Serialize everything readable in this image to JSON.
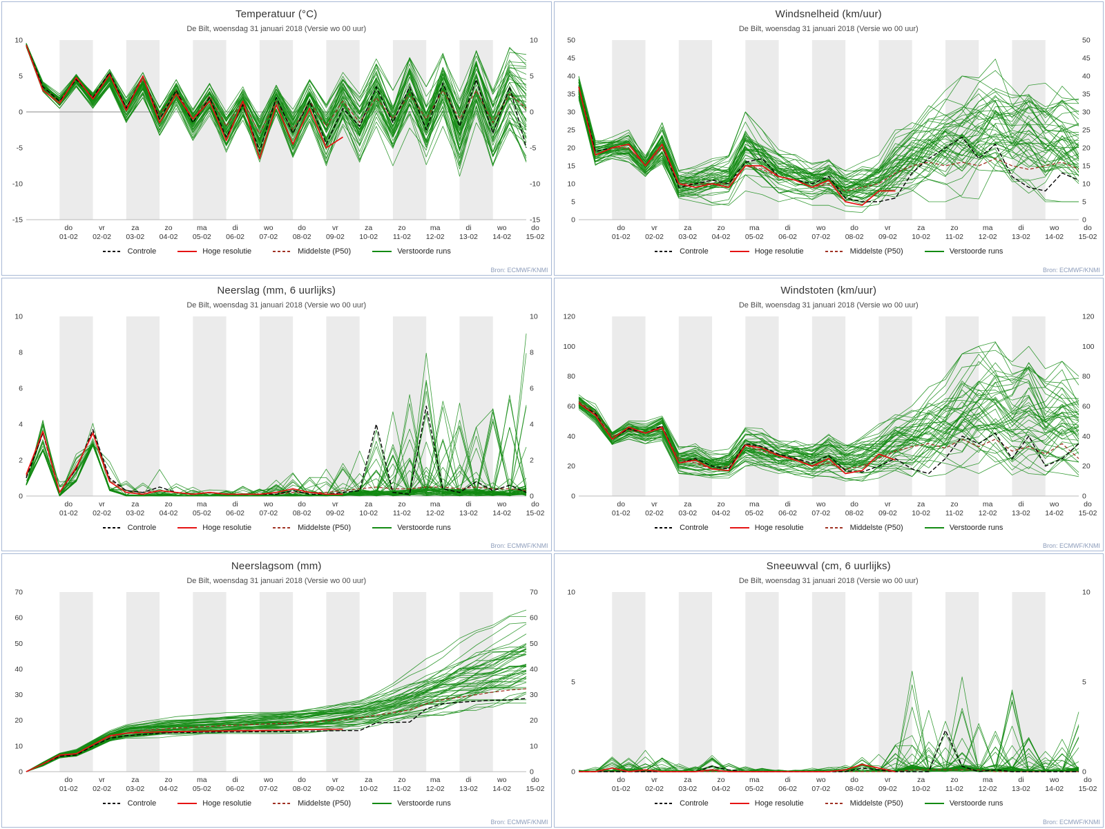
{
  "source_label": "Bron: ECMWF/KNMI",
  "legend": {
    "controle": "Controle",
    "hoge": "Hoge resolutie",
    "middelste": "Middelste (P50)",
    "verstoorde": "Verstoorde runs"
  },
  "colors": {
    "controle": "#000000",
    "hoge": "#e51212",
    "middelste": "#a03123",
    "ensemble": "#128a12",
    "band": "#ebebeb",
    "axis": "#b9b9b9",
    "zero_line": "#8a8a8a",
    "panel_border": "#a6b7d4"
  },
  "x_axis": {
    "weekdays": [
      "do",
      "vr",
      "za",
      "zo",
      "ma",
      "di",
      "wo",
      "do",
      "vr",
      "za",
      "zo",
      "ma",
      "di",
      "wo",
      "do"
    ],
    "dates": [
      "01-02",
      "02-02",
      "03-02",
      "04-02",
      "05-02",
      "06-02",
      "07-02",
      "08-02",
      "09-02",
      "10-02",
      "11-02",
      "12-02",
      "13-02",
      "14-02",
      "15-02"
    ],
    "t_start_label": "31 januari 2018 00 uur",
    "days_shown": 15
  },
  "chart_data": [
    {
      "type": "line",
      "title": "Temperatuur (°C)",
      "subtitle": "De Bilt, woensdag 31 januari 2018 (Versie wo 00 uur)",
      "ylim": [
        -15,
        10
      ],
      "yticks": [
        -15,
        -10,
        -5,
        0,
        5,
        10
      ],
      "zero_line": true,
      "t_step": 0.5,
      "ensemble_style": "smooth",
      "ensemble_count": 49,
      "series": {
        "controle": [
          9.3,
          3.5,
          1.5,
          4.5,
          2,
          5.5,
          0.5,
          5,
          -1,
          3,
          -1.5,
          2,
          -3.5,
          1,
          -5.5,
          2,
          -3,
          1.5,
          -4.5,
          0.5,
          -2,
          3.5,
          -1.5,
          3.5,
          -2.5,
          4,
          -2,
          4.5,
          -3,
          3.5,
          -5
        ],
        "hoge_resolutie": [
          9.3,
          3,
          1.2,
          4.8,
          1.8,
          5.2,
          0.2,
          5,
          -1.5,
          2.5,
          -1,
          1.5,
          -4,
          1.5,
          -6.5,
          1,
          -4.5,
          0.5,
          -5,
          -3.5
        ],
        "middelste_p50": [
          9.3,
          3.4,
          1.5,
          4.6,
          2,
          5.2,
          0.5,
          4.6,
          -0.5,
          3,
          -1,
          2.2,
          -2,
          1.5,
          -3,
          1.5,
          -2.5,
          1.5,
          -2,
          1.5,
          -1.5,
          2,
          -1,
          2.5,
          -1,
          3,
          -1,
          3,
          -1.5,
          2.5,
          0.5
        ],
        "ensemble_lower": [
          9,
          2.8,
          0.5,
          3.5,
          0.5,
          3.5,
          -1.5,
          2,
          -3.5,
          0.5,
          -4,
          -0.5,
          -6,
          -1.5,
          -7.5,
          -1,
          -7,
          -1.5,
          -7.5,
          -2,
          -7,
          -2,
          -7.5,
          -2.5,
          -8,
          -2,
          -9.5,
          -1.5,
          -8,
          -2.5,
          -7
        ],
        "ensemble_upper": [
          9.6,
          4.2,
          2.5,
          5.5,
          3,
          6,
          2,
          5.5,
          1,
          4.5,
          0.5,
          4,
          0,
          3.5,
          -0.5,
          4,
          0.5,
          4.5,
          1,
          5.5,
          2.5,
          7.5,
          3,
          8.5,
          3.5,
          9,
          3,
          9.5,
          3,
          9,
          8
        ]
      }
    },
    {
      "type": "line",
      "title": "Windsnelheid (km/uur)",
      "subtitle": "De Bilt, woensdag 31 januari 2018 (Versie wo 00 uur)",
      "ylim": [
        0,
        50
      ],
      "yticks": [
        0,
        5,
        10,
        15,
        20,
        25,
        30,
        35,
        40,
        45,
        50
      ],
      "zero_line": false,
      "t_step": 0.5,
      "ensemble_style": "smooth",
      "ensemble_count": 49,
      "series": {
        "controle": [
          37,
          19,
          20,
          21,
          15,
          21,
          9,
          10,
          11,
          10,
          16,
          17,
          12,
          11,
          10,
          12,
          6,
          5,
          5,
          6,
          13,
          17,
          20,
          23,
          17,
          21,
          12,
          9,
          8,
          13,
          11
        ],
        "hoge_resolutie": [
          37,
          18,
          20,
          21,
          15,
          21,
          10,
          9,
          10,
          9,
          15,
          15,
          12,
          11,
          9,
          11,
          5,
          4,
          8,
          8
        ],
        "middelste_p50": [
          37,
          18,
          20,
          20,
          15,
          20,
          10,
          10,
          10,
          10,
          15,
          14,
          12,
          11,
          9,
          10,
          8,
          9,
          10,
          13,
          15,
          16,
          15,
          16,
          15,
          17,
          15,
          14,
          15,
          16,
          14
        ],
        "ensemble_lower": [
          33,
          15,
          17,
          16,
          12,
          15,
          5,
          5,
          4,
          4,
          8,
          7,
          5,
          5,
          4,
          4,
          2,
          2,
          3,
          4,
          5,
          5,
          5,
          5,
          5,
          6,
          5,
          5,
          5,
          5,
          5
        ],
        "ensemble_upper": [
          40,
          22,
          23,
          25,
          18,
          27,
          14,
          15,
          17,
          18,
          30,
          25,
          20,
          19,
          17,
          19,
          15,
          16,
          18,
          25,
          28,
          33,
          36,
          40,
          42,
          45,
          40,
          42,
          38,
          40,
          35
        ]
      }
    },
    {
      "type": "line",
      "title": "Neerslag (mm, 6 uurlijks)",
      "subtitle": "De Bilt, woensdag 31 januari 2018 (Versie wo 00 uur)",
      "ylim": [
        0,
        10
      ],
      "yticks": [
        0,
        2,
        4,
        6,
        8,
        10
      ],
      "zero_line": false,
      "t_step": 0.5,
      "ensemble_style": "spiky",
      "ensemble_count": 49,
      "series": {
        "controle": [
          1,
          3.5,
          0.2,
          1.5,
          3.7,
          1,
          0.3,
          0.2,
          0.5,
          0.2,
          0.1,
          0.2,
          0.1,
          0.1,
          0.1,
          0.1,
          0.3,
          0.1,
          0.1,
          0.2,
          0.3,
          4,
          0.2,
          0.1,
          5,
          0.4,
          0.2,
          0.8,
          0.3,
          0.6,
          0.2
        ],
        "hoge_resolutie": [
          1.2,
          3.6,
          0.2,
          1.6,
          3.5,
          0.8,
          0.2,
          0.1,
          0.3,
          0.2,
          0.1,
          0.2,
          0.1,
          0.1,
          0.1,
          0.2,
          0.4,
          0.2,
          0.1,
          0.1
        ],
        "middelste_p50": [
          1.1,
          3.5,
          0.2,
          1.5,
          3.6,
          0.9,
          0.3,
          0.2,
          0.3,
          0.2,
          0.1,
          0.2,
          0.1,
          0.1,
          0.1,
          0.1,
          0.2,
          0.2,
          0.2,
          0.3,
          0.4,
          0.5,
          0.4,
          0.4,
          0.5,
          0.5,
          0.4,
          0.5,
          0.4,
          0.4,
          0.3
        ],
        "ensemble_lower": [
          0.6,
          2.5,
          0,
          0.8,
          2.8,
          0.3,
          0,
          0,
          0,
          0,
          0,
          0,
          0,
          0,
          0,
          0,
          0,
          0,
          0,
          0,
          0,
          0,
          0,
          0,
          0,
          0,
          0,
          0,
          0,
          0,
          0
        ],
        "ensemble_upper": [
          1.5,
          4.5,
          1,
          2.5,
          5,
          2,
          1.2,
          0.8,
          1.5,
          0.8,
          0.6,
          0.8,
          0.5,
          0.6,
          0.5,
          1,
          1.5,
          1.2,
          1.5,
          2,
          6.5,
          5.5,
          5,
          6,
          9.5,
          7,
          6.5,
          6.5,
          5,
          6,
          9.8
        ]
      }
    },
    {
      "type": "line",
      "title": "Windstoten (km/uur)",
      "subtitle": "De Bilt, woensdag 31 januari 2018 (Versie wo 00 uur)",
      "ylim": [
        0,
        120
      ],
      "yticks": [
        0,
        20,
        40,
        60,
        80,
        100,
        120
      ],
      "zero_line": false,
      "t_step": 0.5,
      "ensemble_style": "smooth",
      "ensemble_count": 49,
      "series": {
        "controle": [
          62,
          55,
          38,
          45,
          42,
          47,
          22,
          25,
          20,
          18,
          35,
          33,
          28,
          25,
          22,
          27,
          17,
          16,
          20,
          25,
          18,
          15,
          25,
          40,
          35,
          42,
          25,
          40,
          20,
          25,
          35
        ],
        "hoge_resolutie": [
          62,
          54,
          38,
          46,
          42,
          46,
          22,
          24,
          18,
          17,
          34,
          32,
          27,
          24,
          20,
          25,
          15,
          17,
          28,
          24
        ],
        "middelste_p50": [
          63,
          56,
          40,
          44,
          42,
          45,
          25,
          22,
          18,
          20,
          34,
          30,
          27,
          25,
          20,
          22,
          18,
          20,
          25,
          30,
          33,
          35,
          32,
          38,
          33,
          38,
          30,
          33,
          28,
          35,
          25
        ],
        "ensemble_lower": [
          57,
          48,
          33,
          38,
          35,
          37,
          15,
          14,
          12,
          12,
          20,
          18,
          15,
          14,
          12,
          13,
          10,
          10,
          12,
          14,
          13,
          13,
          14,
          15,
          15,
          16,
          14,
          15,
          14,
          15,
          13
        ],
        "ensemble_upper": [
          68,
          62,
          45,
          52,
          50,
          55,
          33,
          35,
          30,
          32,
          48,
          45,
          40,
          42,
          40,
          48,
          40,
          45,
          50,
          60,
          65,
          75,
          80,
          95,
          100,
          103,
          90,
          100,
          85,
          90,
          80
        ]
      }
    },
    {
      "type": "line",
      "title": "Neerslagsom (mm)",
      "subtitle": "De Bilt, woensdag 31 januari 2018 (Versie wo 00 uur)",
      "ylim": [
        0,
        70
      ],
      "yticks": [
        0,
        10,
        20,
        30,
        40,
        50,
        60,
        70
      ],
      "zero_line": false,
      "t_step": 0.5,
      "ensemble_style": "cumulative",
      "ensemble_count": 49,
      "series": {
        "controle": [
          0,
          3,
          6,
          6.5,
          10,
          13,
          14,
          14.5,
          15,
          15.2,
          15.3,
          15.4,
          15.5,
          15.5,
          15.6,
          15.6,
          15.7,
          15.8,
          15.9,
          16,
          16,
          19,
          19.2,
          19.3,
          24.5,
          26.5,
          27,
          27.5,
          27.8,
          28,
          28.5
        ],
        "hoge_resolutie": [
          0,
          3,
          6.5,
          7,
          10.5,
          14,
          15,
          15.3,
          15.5,
          15.6,
          15.7,
          15.8,
          15.9,
          16,
          16,
          16.1,
          16.2,
          16.4,
          16.5,
          16.5
        ],
        "middelste_p50": [
          0,
          3,
          6,
          7,
          10.5,
          13.5,
          15,
          16,
          16.5,
          17,
          17.3,
          17.6,
          18,
          18.2,
          18.5,
          18.7,
          19,
          19.3,
          19.8,
          20.3,
          21,
          22,
          23,
          24,
          26.5,
          28,
          29,
          30,
          31,
          31.8,
          32.3
        ],
        "ensemble_lower": [
          0,
          2,
          5,
          5.5,
          8,
          11,
          12,
          12.5,
          13,
          13.2,
          13.4,
          13.5,
          13.6,
          13.8,
          14,
          14.1,
          14.2,
          14.4,
          14.6,
          14.8,
          15,
          15.2,
          15.5,
          15.8,
          16,
          16.2,
          16.5,
          16.8,
          17,
          17,
          17
        ],
        "ensemble_upper": [
          0,
          4,
          7.5,
          9,
          13,
          16.5,
          19,
          20,
          21,
          21.5,
          22,
          22.5,
          23,
          23.5,
          24,
          24.5,
          25,
          26,
          27,
          28.5,
          30,
          33,
          36,
          40,
          44,
          48,
          52,
          55,
          58,
          61,
          63
        ]
      }
    },
    {
      "type": "line",
      "title": "Sneeuwval (cm, 6 uurlijks)",
      "subtitle": "De Bilt, woensdag 31 januari 2018 (Versie wo 00 uur)",
      "ylim": [
        0,
        10
      ],
      "yticks": [
        0,
        5,
        10
      ],
      "zero_line": false,
      "t_step": 0.5,
      "ensemble_style": "spiky",
      "ensemble_count": 49,
      "series": {
        "controle": [
          0,
          0,
          0,
          0,
          0,
          0,
          0,
          0,
          0.3,
          0.1,
          0,
          0,
          0,
          0,
          0,
          0,
          0,
          0.2,
          0.1,
          0,
          0,
          0,
          2.3,
          0.3,
          0,
          0.1,
          0,
          0,
          0,
          0,
          0
        ],
        "hoge_resolutie": [
          0,
          0,
          0.2,
          0,
          0.1,
          0,
          0,
          0,
          0.1,
          0,
          0,
          0,
          0,
          0,
          0,
          0,
          0.1,
          0.4,
          0.2,
          0
        ],
        "middelste_p50": [
          0,
          0,
          0,
          0,
          0,
          0,
          0,
          0,
          0,
          0,
          0,
          0,
          0,
          0,
          0,
          0,
          0,
          0,
          0,
          0,
          0.1,
          0.1,
          0.1,
          0.1,
          0.1,
          0,
          0,
          0,
          0,
          0,
          0
        ],
        "ensemble_lower": [
          0,
          0,
          0,
          0,
          0,
          0,
          0,
          0,
          0,
          0,
          0,
          0,
          0,
          0,
          0,
          0,
          0,
          0,
          0,
          0,
          0,
          0,
          0,
          0,
          0,
          0,
          0,
          0,
          0,
          0,
          0
        ],
        "ensemble_upper": [
          0.1,
          0.3,
          1,
          0.8,
          1.2,
          0.8,
          0.5,
          0.3,
          1,
          0.6,
          0.3,
          0.2,
          0.1,
          0.1,
          0.2,
          0.3,
          0.5,
          0.8,
          1,
          1.5,
          6.3,
          3.5,
          3,
          5.8,
          3,
          2.5,
          4.6,
          2,
          1.5,
          2,
          3.5
        ]
      }
    }
  ]
}
